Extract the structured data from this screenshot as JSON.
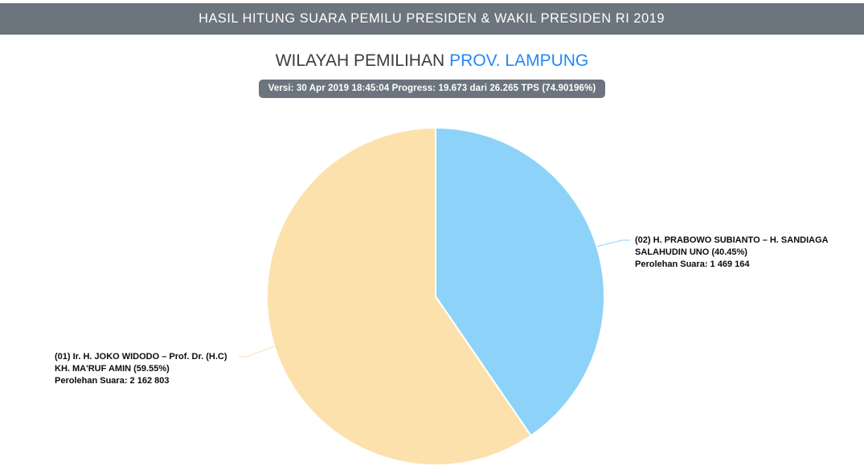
{
  "header": {
    "title": "HASIL HITUNG SUARA PEMILU PRESIDEN & WAKIL PRESIDEN RI 2019"
  },
  "page": {
    "title_prefix": "WILAYAH PEMILIHAN",
    "title_region": "PROV. LAMPUNG",
    "status_badge": "Versi: 30 Apr 2019 18:45:04 Progress: 19.673 dari 26.265 TPS (74.90196%)"
  },
  "colors": {
    "bar_background": "#6C757D",
    "region_accent": "#2488F5",
    "slice_01": "#FCE1AD",
    "slice_02": "#8DD2F9"
  },
  "chart_data": {
    "type": "pie",
    "title": "",
    "legend": "none",
    "start_from_top": true,
    "clockwise": true,
    "draw_order_from_top": [
      "02",
      "01"
    ],
    "slices": [
      {
        "id": "01",
        "name": "(01) Ir. H. JOKO WIDODO – Prof. Dr. (H.C) KH. MA'RUF AMIN",
        "percent": 59.55,
        "votes": 2162803,
        "votes_display": "2 162 803",
        "color": "#FCE1AD",
        "label_lines": [
          "(01) Ir. H. JOKO WIDODO – Prof. Dr. (H.C)",
          "KH. MA'RUF AMIN (59.55%)",
          "Perolehan Suara: 2 162 803"
        ]
      },
      {
        "id": "02",
        "name": "(02) H. PRABOWO SUBIANTO – H. SANDIAGA SALAHUDIN UNO",
        "percent": 40.45,
        "votes": 1469164,
        "votes_display": "1 469 164",
        "color": "#8DD2F9",
        "label_lines": [
          "(02) H. PRABOWO SUBIANTO – H. SANDIAGA",
          "SALAHUDIN UNO (40.45%)",
          "Perolehan Suara: 1 469 164"
        ]
      }
    ]
  }
}
